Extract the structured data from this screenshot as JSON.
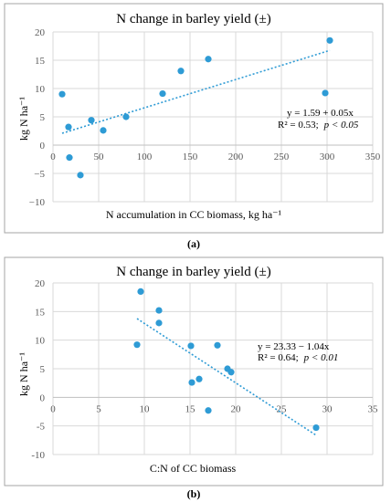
{
  "chart_data": [
    {
      "type": "scatter",
      "title": "N change in  barley yield (±)",
      "xlabel": "N accumulation in CC biomass, kg ha⁻¹",
      "ylabel": "kg N ha⁻¹",
      "xlim": [
        0,
        350
      ],
      "ylim": [
        -10,
        20
      ],
      "xticks": [
        "0",
        "50",
        "100",
        "150",
        "200",
        "250",
        "300",
        "350"
      ],
      "yticks": [
        "20",
        "15",
        "10",
        "5",
        "0",
        "−5",
        "−10"
      ],
      "points": [
        {
          "x": 10,
          "y": 9.0
        },
        {
          "x": 17,
          "y": 3.2
        },
        {
          "x": 18,
          "y": -2.2
        },
        {
          "x": 30,
          "y": -5.3
        },
        {
          "x": 42,
          "y": 4.4
        },
        {
          "x": 55,
          "y": 2.6
        },
        {
          "x": 80,
          "y": 5.0
        },
        {
          "x": 120,
          "y": 9.1
        },
        {
          "x": 140,
          "y": 13.1
        },
        {
          "x": 170,
          "y": 15.2
        },
        {
          "x": 298,
          "y": 9.2
        },
        {
          "x": 303,
          "y": 18.5
        }
      ],
      "trendline": {
        "intercept": 1.59,
        "slope": 0.05,
        "x_range": [
          10,
          303
        ]
      },
      "equation": "y = 1.59 + 0.05x",
      "r2_text": "R² = 0.53;",
      "p_text": "p < 0.05",
      "grid": true,
      "caption": "(a)"
    },
    {
      "type": "scatter",
      "title": "N change in  barley yield (±)",
      "xlabel": "C:N of CC biomass",
      "ylabel": "kg N ha⁻¹",
      "xlim": [
        0,
        35
      ],
      "ylim": [
        -10,
        20
      ],
      "xticks": [
        "0",
        "5",
        "10",
        "15",
        "20",
        "25",
        "30",
        "35"
      ],
      "yticks": [
        "20",
        "15",
        "10",
        "5",
        "0",
        "-5",
        "-10"
      ],
      "points": [
        {
          "x": 9.2,
          "y": 9.2
        },
        {
          "x": 9.6,
          "y": 18.5
        },
        {
          "x": 11.6,
          "y": 15.2
        },
        {
          "x": 11.6,
          "y": 13.0
        },
        {
          "x": 15.1,
          "y": 9.0
        },
        {
          "x": 15.2,
          "y": 2.6
        },
        {
          "x": 16.0,
          "y": 3.2
        },
        {
          "x": 17.0,
          "y": -2.3
        },
        {
          "x": 18.0,
          "y": 9.1
        },
        {
          "x": 19.1,
          "y": 5.0
        },
        {
          "x": 19.5,
          "y": 4.4
        },
        {
          "x": 28.8,
          "y": -5.3
        }
      ],
      "trendline": {
        "intercept": 23.33,
        "slope": -1.04,
        "x_range": [
          9.2,
          28.8
        ]
      },
      "equation": "y = 23.33 − 1.04x",
      "r2_text": "R² = 0.64;",
      "p_text": "p < 0.01",
      "grid": true,
      "caption": "(b)"
    }
  ]
}
